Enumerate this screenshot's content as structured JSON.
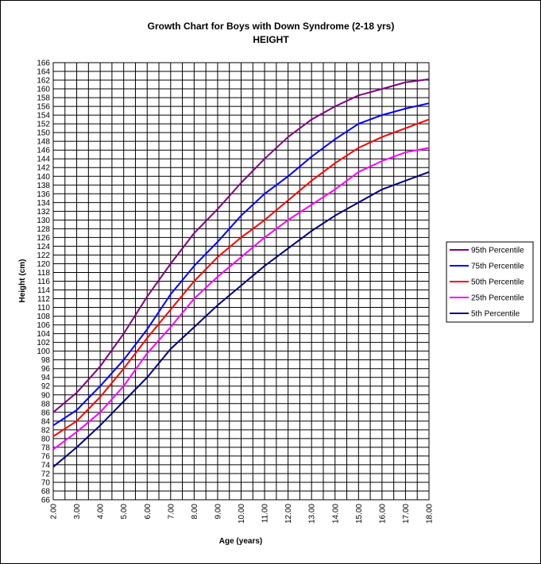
{
  "chart_data": {
    "type": "line",
    "title": "Growth Chart for Boys with Down Syndrome (2-18 yrs)",
    "subtitle": "HEIGHT",
    "xlabel": "Age (years)",
    "ylabel": "Height (cm)",
    "xlim": [
      2,
      18
    ],
    "ylim": [
      66,
      166
    ],
    "x_ticks": [
      "2.00",
      "3.00",
      "4.00",
      "5.00",
      "6.00",
      "7.00",
      "8.00",
      "9.00",
      "10.00",
      "11.00",
      "12.00",
      "13.00",
      "14.00",
      "15.00",
      "16.00",
      "17.00",
      "18.00"
    ],
    "y_ticks": [
      66,
      68,
      70,
      72,
      74,
      76,
      78,
      80,
      82,
      84,
      86,
      88,
      90,
      92,
      94,
      96,
      98,
      100,
      102,
      104,
      106,
      108,
      110,
      112,
      114,
      116,
      118,
      120,
      122,
      124,
      126,
      128,
      130,
      132,
      134,
      136,
      138,
      140,
      142,
      144,
      146,
      148,
      150,
      152,
      154,
      156,
      158,
      160,
      162,
      164,
      166
    ],
    "grid": true,
    "legend": "right",
    "x": [
      2,
      3,
      4,
      5,
      6,
      7,
      8,
      9,
      10,
      11,
      12,
      13,
      14,
      15,
      16,
      17,
      18
    ],
    "series": [
      {
        "name": "95th Percentile",
        "color": "#800080",
        "values": [
          86,
          90.5,
          96.5,
          104,
          112.5,
          120,
          127,
          132.5,
          138.5,
          144,
          149,
          153,
          156,
          158.5,
          160,
          161.5,
          162.2
        ]
      },
      {
        "name": "75th Percentile",
        "color": "#0000ff",
        "values": [
          83,
          86.5,
          92,
          98,
          105,
          113,
          119.5,
          125,
          131,
          136,
          140,
          144.5,
          148.5,
          152,
          154,
          155.5,
          156.7
        ]
      },
      {
        "name": "50th Percentile",
        "color": "#ff0000",
        "values": [
          80.5,
          84,
          89.5,
          96,
          103,
          109.5,
          116,
          121.5,
          126,
          130,
          134.5,
          139,
          143,
          146.5,
          149,
          151,
          153
        ]
      },
      {
        "name": "25th Percentile",
        "color": "#ff00ff",
        "values": [
          77.5,
          81.5,
          86,
          92,
          99.5,
          105.5,
          112,
          117,
          121.5,
          126,
          130,
          133.5,
          137,
          141,
          143.5,
          145.5,
          146.5
        ]
      },
      {
        "name": "5th Percentile",
        "color": "#000080",
        "values": [
          73.5,
          78,
          83,
          88.5,
          94,
          100.5,
          105.5,
          110.5,
          115,
          119.5,
          123.5,
          127.5,
          131,
          134,
          137,
          139,
          141
        ]
      }
    ]
  }
}
